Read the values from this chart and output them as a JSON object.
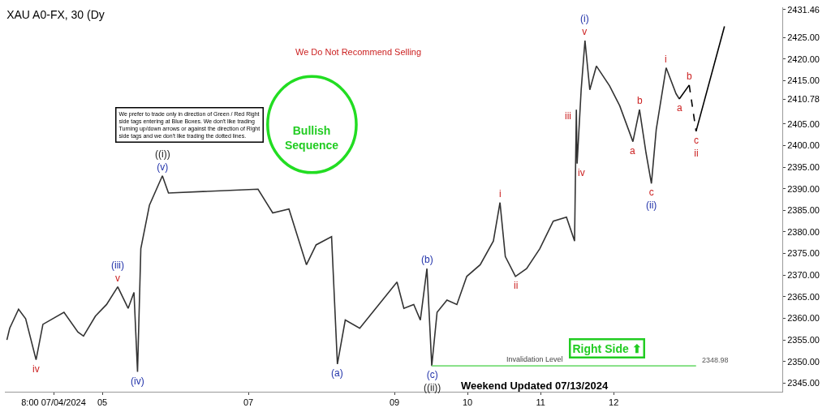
{
  "chart_data": {
    "type": "line",
    "title": "XAU A0-FX, 30 (Dy",
    "x": [
      "2024-07-03T16:40",
      "2024-07-03T17:35",
      "2024-07-03T20:30",
      "2024-07-03T22:50",
      "2024-07-04T02:15",
      "2024-07-04T04:30",
      "2024-07-04T11:25",
      "2024-07-04T16:00",
      "2024-07-04T17:50",
      "2024-07-04T21:45",
      "2024-07-05T01:25",
      "2024-07-05T05:05",
      "2024-07-05T08:30",
      "2024-07-05T10:25",
      "2024-07-05T11:35",
      "2024-07-05T12:40",
      "2024-07-05T15:30",
      "2024-07-05T19:45",
      "2024-07-05T21:45",
      "2024-07-07T03:10",
      "2024-07-07T08:00",
      "2024-07-07T13:20",
      "2024-07-07T19:05",
      "2024-07-07T22:15",
      "2024-07-08T03:20",
      "2024-07-08T05:15",
      "2024-07-08T07:50",
      "2024-07-08T12:35",
      "2024-07-09T00:50",
      "2024-07-09T03:05",
      "2024-07-09T06:20",
      "2024-07-09T08:30",
      "2024-07-09T10:40",
      "2024-07-09T12:15",
      "2024-07-09T14:00",
      "2024-07-09T17:15",
      "2024-07-09T20:30",
      "2024-07-09T23:45",
      "2024-07-10T04:10",
      "2024-07-10T08:30",
      "2024-07-10T10:40",
      "2024-07-10T12:25",
      "2024-07-10T15:45",
      "2024-07-10T19:25",
      "2024-07-10T23:45",
      "2024-07-11T04:10",
      "2024-07-11T08:30",
      "2024-07-11T11:10",
      "2024-07-11T11:45",
      "2024-07-11T12:00",
      "2024-07-11T13:20",
      "2024-07-11T14:35",
      "2024-07-11T16:10",
      "2024-07-11T18:20",
      "2024-07-11T22:40",
      "2024-07-12T02:00",
      "2024-07-12T06:20",
      "2024-07-12T08:30",
      "2024-07-12T10:40",
      "2024-07-12T12:25",
      "2024-07-12T14:00",
      "2024-07-12T17:15",
      "2024-07-12T20:30",
      "2024-07-12T21:35"
    ],
    "series": [
      {
        "color": "#333333",
        "values": [
          2355.0,
          2357.7,
          2362.1,
          2359.9,
          2350.4,
          2358.6,
          2361.4,
          2356.8,
          2355.9,
          2360.5,
          2363.2,
          2367.3,
          2362.3,
          2366.0,
          2347.6,
          2376.1,
          2386.2,
          2393.0,
          2389.0,
          2389.9,
          2384.4,
          2385.3,
          2372.4,
          2377.0,
          2378.9,
          2349.4,
          2359.6,
          2357.7,
          2368.4,
          2362.3,
          2363.2,
          2359.6,
          2371.5,
          2348.98,
          2361.4,
          2364.2,
          2363.2,
          2369.7,
          2372.4,
          2377.9,
          2386.8,
          2374.3,
          2369.7,
          2371.5,
          2376.1,
          2382.5,
          2383.4,
          2377.9,
          2408.3,
          2395.8,
          2412.9,
          2424.3,
          2412.9,
          2418.4,
          2413.8,
          2409.2,
          2400.9,
          2408.3,
          2398.2,
          2391.2,
          2403.7,
          2418.0,
          2412.0,
          2410.78
        ]
      },
      {
        "color": "#000000",
        "x": [
          "2024-07-12T21:35",
          "2024-07-13T00:50"
        ],
        "values": [
          2410.78,
          2414.0
        ]
      },
      {
        "color": "#000000",
        "x": [
          "2024-07-13T00:50",
          "2024-07-13T03:05"
        ],
        "values": [
          2414.0,
          2403.3
        ],
        "line_style": "dashed"
      },
      {
        "color": "#000000",
        "x": [
          "2024-07-13T03:05",
          "2024-07-13T12:25"
        ],
        "values": [
          2403.3,
          2427.6
        ]
      },
      {
        "name": "Invalidation Level",
        "color": "#77dd77",
        "x": [
          "2024-07-09T12:15",
          "2024-07-13T03:05"
        ],
        "values": [
          2348.98,
          2348.98
        ]
      }
    ],
    "annotations": [
      "We Do Not Recommend Selling",
      "We prefer to trade only in direction of Green / Red Right\nside tags entering at Blue Boxes. We don't like trading\nTurning up/down arrows or against the direction of Right\nside tags and we don't like trading the dotted lines.",
      "Bullish\nSequence",
      "Right Side ⬆",
      "Weekend Updated 07/13/2024",
      "2348.98",
      {
        "text": "iv",
        "x": "2024-07-04T02:15",
        "y": 2350.4
      },
      {
        "text": "(iii)\nv",
        "x": "2024-07-05T05:05",
        "y": 2367.3
      },
      {
        "text": "(iv)",
        "x": "2024-07-05T11:35",
        "y": 2347.6
      },
      {
        "text": "((i))\n(v)",
        "x": "2024-07-05T19:45",
        "y": 2393.0
      },
      {
        "text": "(a)",
        "x": "2024-07-08T05:15",
        "y": 2349.4
      },
      {
        "text": "(b)",
        "x": "2024-07-09T10:40",
        "y": 2371.5
      },
      {
        "text": "(c)\n((ii))",
        "x": "2024-07-09T12:15",
        "y": 2348.98
      },
      {
        "text": "i",
        "x": "2024-07-10T10:40",
        "y": 2386.8
      },
      {
        "text": "ii",
        "x": "2024-07-10T15:45",
        "y": 2369.7
      },
      {
        "text": "iii",
        "x": "2024-07-11T11:45",
        "y": 2408.3
      },
      {
        "text": "iv",
        "x": "2024-07-11T12:00",
        "y": 2395.8
      },
      {
        "text": "(i)\nv",
        "x": "2024-07-11T14:35",
        "y": 2424.3
      },
      {
        "text": "a",
        "x": "2024-07-12T06:20",
        "y": 2400.9
      },
      {
        "text": "b",
        "x": "2024-07-12T08:30",
        "y": 2408.3
      },
      {
        "text": "c\n(ii)",
        "x": "2024-07-12T12:25",
        "y": 2391.2
      },
      {
        "text": "i",
        "x": "2024-07-12T17:15",
        "y": 2418.0
      },
      {
        "text": "a",
        "x": "2024-07-12T21:35",
        "y": 2410.78
      },
      {
        "text": "b",
        "x": "2024-07-13T00:50",
        "y": 2414.0
      },
      {
        "text": "c\nii",
        "x": "2024-07-13T03:05",
        "y": 2403.3
      }
    ],
    "xlim": [
      "2024-07-03T16:00",
      "2024-07-14T07:25"
    ],
    "xticks": [
      {
        "value": "2024-07-04T08:00",
        "label": "8:00 07/04/2024"
      },
      {
        "value": "2024-07-05",
        "label": "05"
      },
      {
        "value": "2024-07-07",
        "label": "07"
      },
      {
        "value": "2024-07-09",
        "label": "09"
      },
      {
        "value": "2024-07-10",
        "label": "10"
      },
      {
        "value": "2024-07-11",
        "label": "11"
      },
      {
        "value": "2024-07-12",
        "label": "12"
      }
    ],
    "ylim": [
      2343,
      2432
    ],
    "yticks": [
      {
        "value": 2345,
        "label": "2345.00"
      },
      {
        "value": 2350,
        "label": "2350.00"
      },
      {
        "value": 2355,
        "label": "2355.00"
      },
      {
        "value": 2360,
        "label": "2360.00"
      },
      {
        "value": 2365,
        "label": "2365.00"
      },
      {
        "value": 2370,
        "label": "2370.00"
      },
      {
        "value": 2375,
        "label": "2375.00"
      },
      {
        "value": 2380,
        "label": "2380.00"
      },
      {
        "value": 2385,
        "label": "2385.00"
      },
      {
        "value": 2390,
        "label": "2390.00"
      },
      {
        "value": 2395,
        "label": "2395.00"
      },
      {
        "value": 2400,
        "label": "2400.00"
      },
      {
        "value": 2405,
        "label": "2405.00"
      },
      {
        "value": 2410.78,
        "label": "2410.78"
      },
      {
        "value": 2415,
        "label": "2415.00"
      },
      {
        "value": 2420,
        "label": "2420.00"
      },
      {
        "value": 2425,
        "label": "2425.00"
      },
      {
        "value": 2431.46,
        "label": "2431.46"
      }
    ],
    "legend": false,
    "marker": "none",
    "line_style": "solid"
  }
}
